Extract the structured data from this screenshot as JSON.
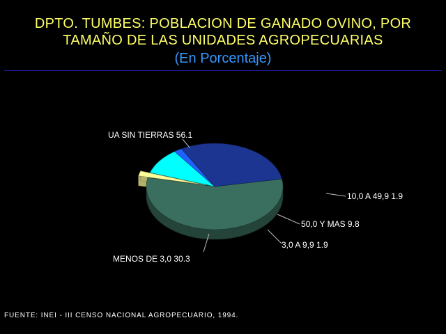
{
  "header": {
    "title_line1": "DPTO. TUMBES: POBLACION DE GANADO OVINO, POR",
    "title_line2": "TAMAÑO DE LAS UNIDADES AGROPECUARIAS",
    "subtitle": "(En Porcentaje)"
  },
  "footer": {
    "source": "FUENTE: INEI - III CENSO NACIONAL AGROPECUARIO, 1994."
  },
  "chart_data": {
    "type": "pie",
    "style": "3d",
    "unit": "percent",
    "slices": [
      {
        "label": "UA SIN TIERRAS",
        "value": 56.1,
        "value_text": "56.1",
        "color": "#3a6e5e",
        "exploded": false
      },
      {
        "label": "10,0 A 49,9",
        "value": 1.9,
        "value_text": "1.9",
        "color": "#ffff99",
        "exploded": true
      },
      {
        "label": "50,0 Y MAS",
        "value": 9.8,
        "value_text": "9.8",
        "color": "#00ffff",
        "exploded": false
      },
      {
        "label": "3,0 A 9,9",
        "value": 1.9,
        "value_text": "1.9",
        "color": "#1f63ff",
        "exploded": false
      },
      {
        "label": "MENOS DE 3,0",
        "value": 30.3,
        "value_text": "30.3",
        "color": "#1c3590",
        "exploded": false
      }
    ]
  }
}
